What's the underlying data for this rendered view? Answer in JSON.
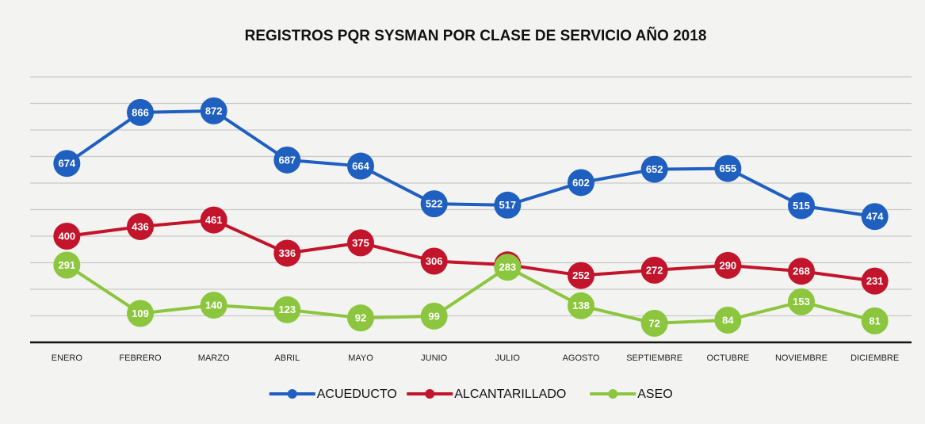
{
  "chart_data": {
    "type": "line",
    "title": "REGISTROS PQR  SYSMAN POR CLASE DE SERVICIO AÑO 2018",
    "categories": [
      "ENERO",
      "FEBRERO",
      "MARZO",
      "ABRIL",
      "MAYO",
      "JUNIO",
      "JULIO",
      "AGOSTO",
      "SEPTIEMBRE",
      "OCTUBRE",
      "NOVIEMBRE",
      "DICIEMBRE"
    ],
    "series": [
      {
        "name": "ACUEDUCTO",
        "color": "#1f5fc0",
        "values": [
          674,
          866,
          872,
          687,
          664,
          522,
          517,
          602,
          652,
          655,
          515,
          474
        ]
      },
      {
        "name": "ALCANTARILLADO",
        "color": "#c2142b",
        "values": [
          400,
          436,
          461,
          336,
          375,
          306,
          292,
          252,
          272,
          290,
          268,
          231
        ]
      },
      {
        "name": "ASEO",
        "color": "#8cc63e",
        "values": [
          291,
          109,
          140,
          123,
          92,
          99,
          283,
          138,
          72,
          84,
          153,
          81
        ]
      }
    ],
    "ylim": [
      0,
      1000
    ],
    "yticks": [
      100,
      200,
      300,
      400,
      500,
      600,
      700,
      800,
      900,
      1000
    ],
    "grid": true,
    "legend": "bottom"
  }
}
